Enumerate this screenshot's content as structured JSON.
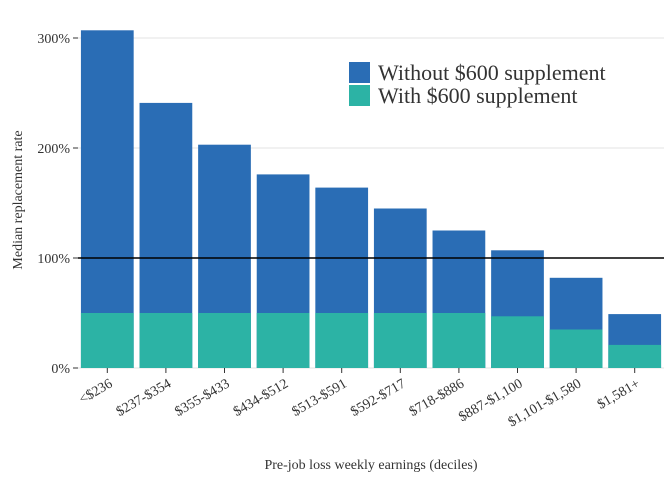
{
  "chart_data": {
    "type": "bar",
    "title": "",
    "xlabel": "Pre-job loss weekly earnings (deciles)",
    "ylabel": "Median replacement rate",
    "ylim": [
      0,
      3.0
    ],
    "yticks": [
      {
        "value": 0,
        "label": "0%"
      },
      {
        "value": 1,
        "label": "100%"
      },
      {
        "value": 2,
        "label": "200%"
      },
      {
        "value": 3,
        "label": "300%"
      }
    ],
    "reference_line": 1.0,
    "grid": "horizontal",
    "legend_position": "top-right",
    "categories": [
      "<$236",
      "$237-$354",
      "$355-$433",
      "$434-$512",
      "$513-$591",
      "$592-$717",
      "$718-$886",
      "$887-$1,100",
      "$1,101-$1,580",
      "$1,581+"
    ],
    "series": [
      {
        "name": "Without $600 supplement",
        "color": "#2a6db5",
        "values": [
          3.07,
          2.41,
          2.03,
          1.76,
          1.64,
          1.45,
          1.25,
          1.07,
          0.82,
          0.49
        ]
      },
      {
        "name": "With $600 supplement",
        "color": "#2cb3a5",
        "values": [
          0.5,
          0.5,
          0.5,
          0.5,
          0.5,
          0.5,
          0.5,
          0.47,
          0.35,
          0.21
        ]
      }
    ]
  }
}
